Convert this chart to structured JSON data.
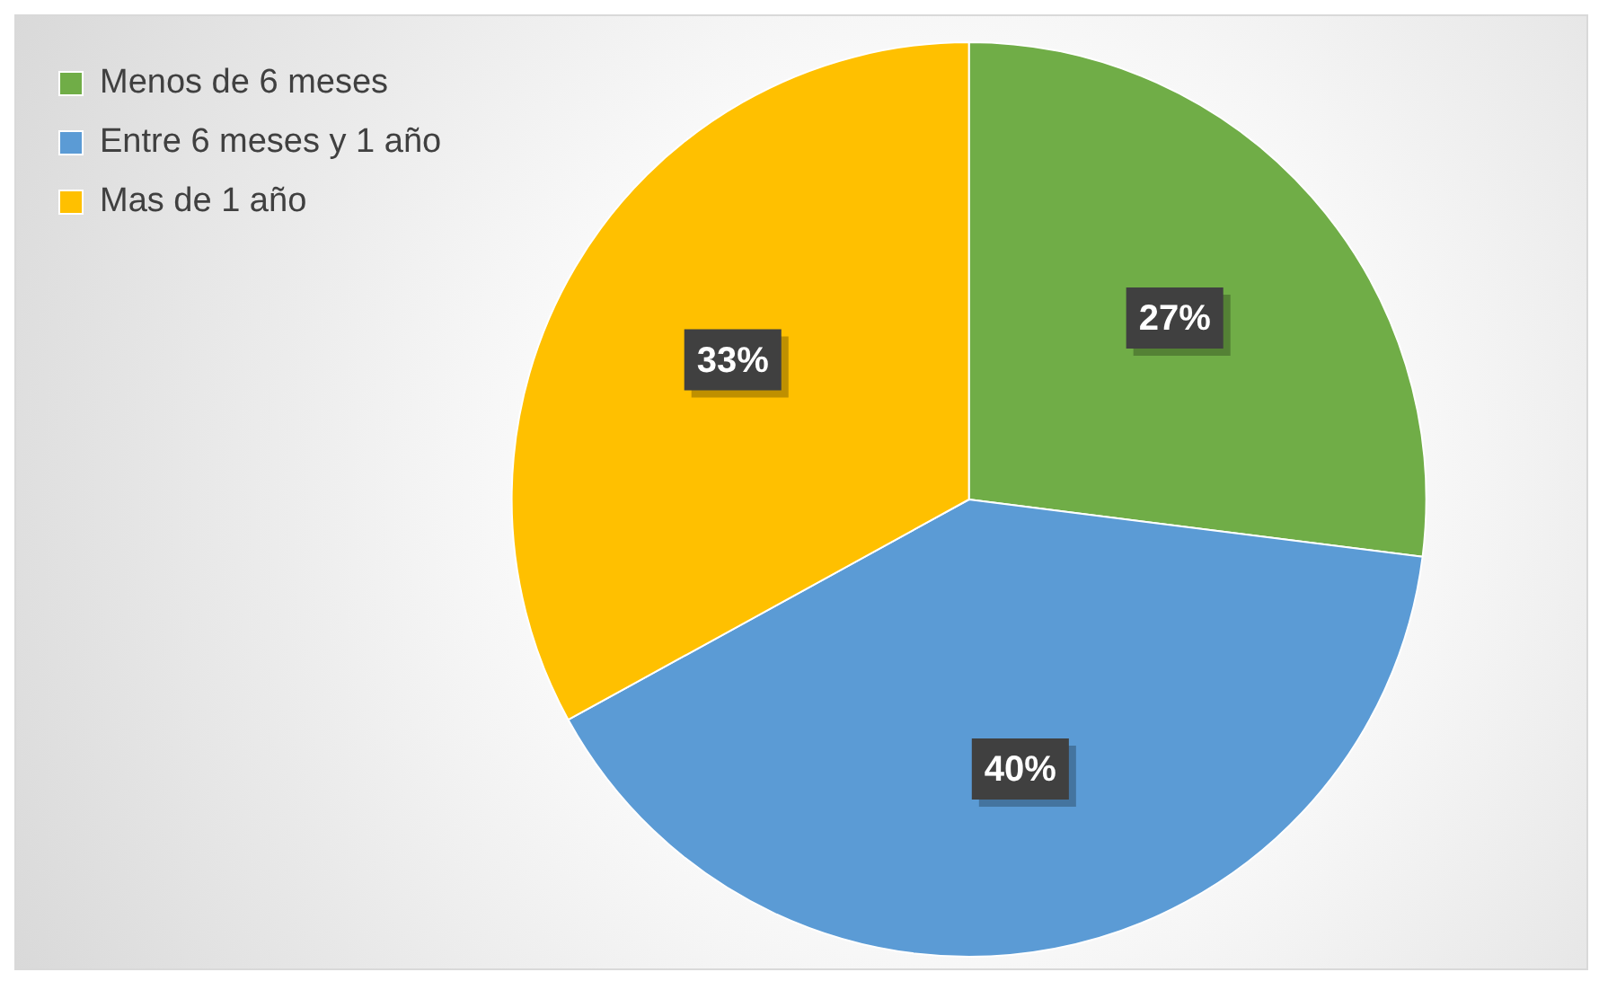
{
  "chart_data": {
    "type": "pie",
    "categories": [
      "Menos de 6 meses",
      "Entre 6 meses y 1 año",
      "Mas de 1 año"
    ],
    "values": [
      27,
      40,
      33
    ],
    "colors": [
      "#70ad47",
      "#5b9bd5",
      "#ffc000"
    ],
    "value_labels": [
      "27%",
      "40%",
      "33%"
    ],
    "legend": "top left"
  }
}
